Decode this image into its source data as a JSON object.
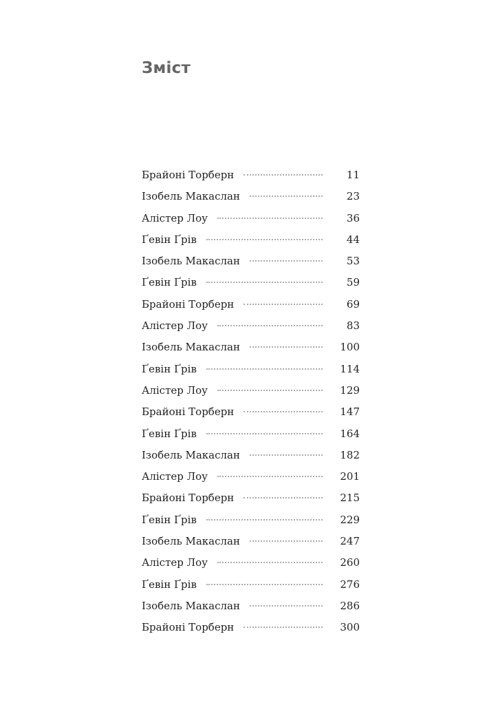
{
  "heading": "Зміст",
  "entries": [
    {
      "title": "Брайоні Торберн",
      "page": "11"
    },
    {
      "title": "Ізобель Макаслан",
      "page": "23"
    },
    {
      "title": "Алістер Лоу",
      "page": "36"
    },
    {
      "title": "Ґевін Ґрів",
      "page": "44"
    },
    {
      "title": "Ізобель Макаслан",
      "page": "53"
    },
    {
      "title": "Ґевін Ґрів",
      "page": "59"
    },
    {
      "title": "Брайоні Торберн",
      "page": "69"
    },
    {
      "title": "Алістер Лоу",
      "page": "83"
    },
    {
      "title": "Ізобель Макаслан",
      "page": "100"
    },
    {
      "title": "Ґевін Ґрів",
      "page": "114"
    },
    {
      "title": "Алістер Лоу",
      "page": "129"
    },
    {
      "title": "Брайоні Торберн",
      "page": "147"
    },
    {
      "title": "Ґевін Ґрів",
      "page": "164"
    },
    {
      "title": "Ізобель Макаслан",
      "page": "182"
    },
    {
      "title": "Алістер Лоу",
      "page": "201"
    },
    {
      "title": "Брайоні Торберн",
      "page": "215"
    },
    {
      "title": "Ґевін Ґрів",
      "page": "229"
    },
    {
      "title": "Ізобель Макаслан",
      "page": "247"
    },
    {
      "title": "Алістер Лоу",
      "page": "260"
    },
    {
      "title": "Ґевін Ґрів",
      "page": "276"
    },
    {
      "title": "Ізобель Макаслан",
      "page": "286"
    },
    {
      "title": "Брайоні Торберн",
      "page": "300"
    }
  ]
}
